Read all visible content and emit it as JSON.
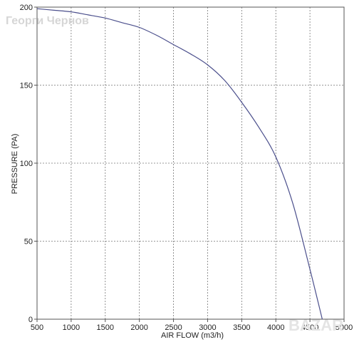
{
  "chart_data": {
    "type": "line",
    "title": "",
    "xlabel": "AIR FLOW (m3/h)",
    "ylabel": "PRESSURE (PA)",
    "xlim": [
      500,
      5000
    ],
    "ylim": [
      0,
      200
    ],
    "x_ticks": [
      500,
      1000,
      1500,
      2000,
      2500,
      3000,
      3500,
      4000,
      4500,
      5000
    ],
    "y_ticks": [
      0,
      50,
      100,
      150,
      200
    ],
    "grid": true,
    "grid_style": "dashed",
    "line_color": "#4b4f8c",
    "series": [
      {
        "x": [
          500,
          750,
          1000,
          1250,
          1500,
          1750,
          2000,
          2250,
          2500,
          2750,
          3000,
          3250,
          3500,
          3750,
          4000,
          4250,
          4500,
          4680
        ],
        "y": [
          199,
          198,
          197,
          195,
          193,
          190,
          187,
          182,
          176,
          170,
          163,
          153,
          139,
          123,
          104,
          74,
          32,
          0
        ]
      }
    ]
  },
  "watermark_text": "Георги Чернов",
  "logo_text": "BAZAR"
}
